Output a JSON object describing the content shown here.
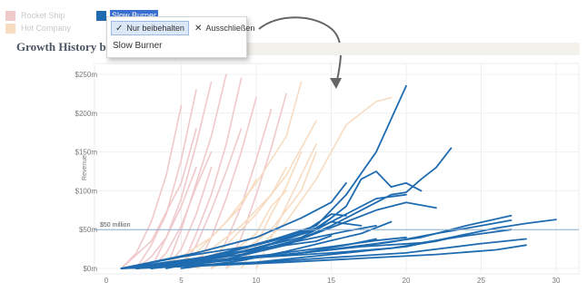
{
  "legend": {
    "items": [
      {
        "label": "Rocket Ship",
        "color": "#f0c9cb"
      },
      {
        "label": "Hot Company",
        "color": "#f7dcc2"
      },
      {
        "label": "Slow Burner",
        "color": "#1f6bb0",
        "selected": true
      }
    ]
  },
  "tooltip": {
    "keep_label": "Nur beibehalten",
    "exclude_label": "Ausschließen",
    "item_label": "Slow Burner"
  },
  "chart_title": "Growth History by Co",
  "chart_data": {
    "type": "line",
    "xlabel": "",
    "ylabel": "Revenue",
    "xlim": [
      0,
      31
    ],
    "ylim": [
      -5,
      260
    ],
    "x_ticks": [
      0,
      5,
      10,
      15,
      20,
      25,
      30
    ],
    "y_ticks": [
      {
        "value": 0,
        "label": "$0m"
      },
      {
        "value": 50,
        "label": "$50m"
      },
      {
        "value": 100,
        "label": "$100m"
      },
      {
        "value": 150,
        "label": "$150m"
      },
      {
        "value": 200,
        "label": "$200m"
      },
      {
        "value": 250,
        "label": "$250m"
      }
    ],
    "reference_line": {
      "value": 50,
      "label": "$50 million"
    },
    "series": [
      {
        "group": "Rocket Ship",
        "color": "#f0c9cb",
        "points": [
          [
            1,
            0
          ],
          [
            2,
            20
          ],
          [
            3,
            60
          ],
          [
            4,
            120
          ],
          [
            5,
            210
          ]
        ]
      },
      {
        "group": "Rocket Ship",
        "color": "#f0c9cb",
        "points": [
          [
            2,
            0
          ],
          [
            3,
            30
          ],
          [
            4,
            70
          ],
          [
            5,
            140
          ],
          [
            6,
            230
          ]
        ]
      },
      {
        "group": "Rocket Ship",
        "color": "#f0c9cb",
        "points": [
          [
            3,
            0
          ],
          [
            4,
            40
          ],
          [
            5,
            90
          ],
          [
            6,
            160
          ],
          [
            7,
            240
          ]
        ]
      },
      {
        "group": "Rocket Ship",
        "color": "#f0c9cb",
        "points": [
          [
            4,
            0
          ],
          [
            5,
            50
          ],
          [
            6,
            110
          ],
          [
            7,
            170
          ],
          [
            8,
            250
          ]
        ]
      },
      {
        "group": "Rocket Ship",
        "color": "#f0c9cb",
        "points": [
          [
            5,
            0
          ],
          [
            6,
            45
          ],
          [
            7,
            95
          ],
          [
            8,
            160
          ],
          [
            9,
            245
          ]
        ]
      },
      {
        "group": "Rocket Ship",
        "color": "#f0c9cb",
        "points": [
          [
            2,
            0
          ],
          [
            3,
            15
          ],
          [
            4,
            40
          ],
          [
            5,
            80
          ],
          [
            6,
            130
          ]
        ]
      },
      {
        "group": "Rocket Ship",
        "color": "#f0c9cb",
        "points": [
          [
            6,
            0
          ],
          [
            7,
            40
          ],
          [
            8,
            90
          ],
          [
            9,
            150
          ],
          [
            10,
            220
          ]
        ]
      },
      {
        "group": "Rocket Ship",
        "color": "#f0c9cb",
        "points": [
          [
            1,
            0
          ],
          [
            3,
            35
          ],
          [
            5,
            110
          ],
          [
            6,
            180
          ]
        ]
      },
      {
        "group": "Rocket Ship",
        "color": "#f0c9cb",
        "points": [
          [
            7,
            0
          ],
          [
            8,
            35
          ],
          [
            9,
            80
          ],
          [
            10,
            140
          ],
          [
            11,
            205
          ]
        ]
      },
      {
        "group": "Rocket Ship",
        "color": "#f0c9cb",
        "points": [
          [
            3,
            0
          ],
          [
            4,
            20
          ],
          [
            5,
            55
          ],
          [
            6,
            105
          ],
          [
            7,
            150
          ]
        ]
      },
      {
        "group": "Rocket Ship",
        "color": "#f0c9cb",
        "points": [
          [
            8,
            0
          ],
          [
            9,
            40
          ],
          [
            10,
            95
          ],
          [
            11,
            155
          ],
          [
            12,
            225
          ]
        ]
      },
      {
        "group": "Rocket Ship",
        "color": "#f0c9cb",
        "points": [
          [
            4,
            0
          ],
          [
            5,
            25
          ],
          [
            6,
            70
          ],
          [
            7,
            130
          ]
        ]
      },
      {
        "group": "Rocket Ship",
        "color": "#f0c9cb",
        "points": [
          [
            5,
            0
          ],
          [
            6,
            30
          ],
          [
            7,
            75
          ],
          [
            8,
            125
          ],
          [
            9,
            180
          ]
        ]
      },
      {
        "group": "Hot Company",
        "color": "#f7dcc2",
        "points": [
          [
            4,
            0
          ],
          [
            6,
            20
          ],
          [
            8,
            60
          ],
          [
            10,
            110
          ],
          [
            12,
            170
          ],
          [
            13,
            240
          ]
        ]
      },
      {
        "group": "Hot Company",
        "color": "#f7dcc2",
        "points": [
          [
            5,
            0
          ],
          [
            7,
            25
          ],
          [
            9,
            55
          ],
          [
            11,
            95
          ],
          [
            12,
            130
          ]
        ]
      },
      {
        "group": "Hot Company",
        "color": "#f7dcc2",
        "points": [
          [
            6,
            0
          ],
          [
            8,
            30
          ],
          [
            10,
            70
          ],
          [
            12,
            120
          ],
          [
            14,
            190
          ]
        ]
      },
      {
        "group": "Hot Company",
        "color": "#f7dcc2",
        "points": [
          [
            7,
            0
          ],
          [
            9,
            20
          ],
          [
            11,
            50
          ],
          [
            13,
            100
          ],
          [
            14,
            150
          ]
        ]
      },
      {
        "group": "Hot Company",
        "color": "#f7dcc2",
        "points": [
          [
            8,
            0
          ],
          [
            10,
            25
          ],
          [
            12,
            60
          ],
          [
            14,
            115
          ],
          [
            16,
            185
          ],
          [
            18,
            215
          ],
          [
            19,
            220
          ]
        ]
      },
      {
        "group": "Hot Company",
        "color": "#f7dcc2",
        "points": [
          [
            3,
            0
          ],
          [
            5,
            15
          ],
          [
            7,
            40
          ],
          [
            9,
            80
          ],
          [
            10,
            115
          ]
        ]
      },
      {
        "group": "Hot Company",
        "color": "#f7dcc2",
        "points": [
          [
            9,
            0
          ],
          [
            10,
            30
          ],
          [
            11,
            70
          ],
          [
            12,
            105
          ],
          [
            13,
            150
          ]
        ]
      },
      {
        "group": "Hot Company",
        "color": "#f7dcc2",
        "points": [
          [
            6,
            0
          ],
          [
            8,
            15
          ],
          [
            10,
            45
          ],
          [
            11,
            80
          ],
          [
            12,
            100
          ]
        ]
      },
      {
        "group": "Hot Company",
        "color": "#f7dcc2",
        "points": [
          [
            10,
            0
          ],
          [
            11,
            40
          ],
          [
            12,
            80
          ],
          [
            13,
            120
          ],
          [
            14,
            160
          ]
        ]
      },
      {
        "group": "Slow Burner",
        "color": "#1f6bb0",
        "points": [
          [
            1,
            0
          ],
          [
            5,
            15
          ],
          [
            10,
            30
          ],
          [
            14,
            55
          ],
          [
            16,
            95
          ],
          [
            18,
            150
          ],
          [
            20,
            235
          ]
        ]
      },
      {
        "group": "Slow Burner",
        "color": "#1f6bb0",
        "points": [
          [
            2,
            0
          ],
          [
            6,
            10
          ],
          [
            10,
            25
          ],
          [
            14,
            50
          ],
          [
            16,
            80
          ],
          [
            17,
            115
          ],
          [
            18,
            125
          ],
          [
            19,
            105
          ],
          [
            20,
            110
          ],
          [
            21,
            100
          ]
        ]
      },
      {
        "group": "Slow Burner",
        "color": "#1f6bb0",
        "points": [
          [
            3,
            0
          ],
          [
            8,
            12
          ],
          [
            12,
            30
          ],
          [
            15,
            55
          ],
          [
            17,
            75
          ],
          [
            19,
            95
          ],
          [
            20,
            98
          ],
          [
            21,
            115
          ],
          [
            22,
            130
          ],
          [
            23,
            155
          ]
        ]
      },
      {
        "group": "Slow Burner",
        "color": "#1f6bb0",
        "points": [
          [
            1,
            0
          ],
          [
            6,
            20
          ],
          [
            10,
            40
          ],
          [
            13,
            65
          ],
          [
            15,
            85
          ],
          [
            16,
            110
          ]
        ]
      },
      {
        "group": "Slow Burner",
        "color": "#1f6bb0",
        "points": [
          [
            2,
            0
          ],
          [
            7,
            15
          ],
          [
            11,
            35
          ],
          [
            14,
            50
          ],
          [
            16,
            70
          ],
          [
            18,
            90
          ],
          [
            20,
            95
          ]
        ]
      },
      {
        "group": "Slow Burner",
        "color": "#1f6bb0",
        "points": [
          [
            3,
            0
          ],
          [
            9,
            18
          ],
          [
            13,
            38
          ],
          [
            16,
            60
          ],
          [
            18,
            75
          ],
          [
            20,
            85
          ],
          [
            22,
            78
          ]
        ]
      },
      {
        "group": "Slow Burner",
        "color": "#1f6bb0",
        "points": [
          [
            1,
            0
          ],
          [
            5,
            10
          ],
          [
            9,
            22
          ],
          [
            13,
            40
          ],
          [
            15,
            60
          ],
          [
            17,
            55
          ]
        ]
      },
      {
        "group": "Slow Burner",
        "color": "#1f6bb0",
        "points": [
          [
            2,
            0
          ],
          [
            8,
            10
          ],
          [
            14,
            22
          ],
          [
            18,
            32
          ],
          [
            21,
            40
          ],
          [
            24,
            55
          ],
          [
            27,
            68
          ]
        ]
      },
      {
        "group": "Slow Burner",
        "color": "#1f6bb0",
        "points": [
          [
            1,
            0
          ],
          [
            10,
            8
          ],
          [
            16,
            20
          ],
          [
            20,
            28
          ],
          [
            23,
            40
          ],
          [
            26,
            52
          ],
          [
            28,
            58
          ],
          [
            30,
            63
          ]
        ]
      },
      {
        "group": "Slow Burner",
        "color": "#1f6bb0",
        "points": [
          [
            3,
            0
          ],
          [
            9,
            12
          ],
          [
            15,
            24
          ],
          [
            19,
            34
          ],
          [
            22,
            45
          ],
          [
            25,
            55
          ],
          [
            27,
            62
          ]
        ]
      },
      {
        "group": "Slow Burner",
        "color": "#1f6bb0",
        "points": [
          [
            2,
            0
          ],
          [
            6,
            8
          ],
          [
            12,
            18
          ],
          [
            17,
            28
          ],
          [
            21,
            33
          ],
          [
            24,
            42
          ],
          [
            27,
            50
          ]
        ]
      },
      {
        "group": "Slow Burner",
        "color": "#1f6bb0",
        "points": [
          [
            1,
            0
          ],
          [
            7,
            14
          ],
          [
            11,
            28
          ],
          [
            14,
            40
          ],
          [
            16,
            48
          ],
          [
            18,
            55
          ]
        ]
      },
      {
        "group": "Slow Burner",
        "color": "#1f6bb0",
        "points": [
          [
            4,
            0
          ],
          [
            8,
            16
          ],
          [
            11,
            32
          ],
          [
            13,
            45
          ],
          [
            15,
            70
          ],
          [
            16,
            68
          ]
        ]
      },
      {
        "group": "Slow Burner",
        "color": "#1f6bb0",
        "points": [
          [
            1,
            0
          ],
          [
            4,
            8
          ],
          [
            8,
            18
          ],
          [
            12,
            30
          ],
          [
            14,
            35
          ],
          [
            15,
            42
          ]
        ]
      },
      {
        "group": "Slow Burner",
        "color": "#1f6bb0",
        "points": [
          [
            2,
            0
          ],
          [
            9,
            6
          ],
          [
            15,
            14
          ],
          [
            20,
            20
          ],
          [
            25,
            32
          ],
          [
            28,
            38
          ]
        ]
      },
      {
        "group": "Slow Burner",
        "color": "#1f6bb0",
        "points": [
          [
            3,
            0
          ],
          [
            6,
            12
          ],
          [
            9,
            26
          ],
          [
            12,
            42
          ],
          [
            14,
            52
          ],
          [
            15,
            65
          ]
        ]
      },
      {
        "group": "Slow Burner",
        "color": "#1f6bb0",
        "points": [
          [
            1,
            0
          ],
          [
            5,
            6
          ],
          [
            10,
            14
          ],
          [
            15,
            20
          ],
          [
            19,
            26
          ],
          [
            22,
            35
          ],
          [
            24,
            44
          ]
        ]
      },
      {
        "group": "Slow Burner",
        "color": "#1f6bb0",
        "points": [
          [
            5,
            0
          ],
          [
            9,
            10
          ],
          [
            12,
            22
          ],
          [
            15,
            36
          ],
          [
            17,
            45
          ],
          [
            19,
            60
          ]
        ]
      },
      {
        "group": "Slow Burner",
        "color": "#1f6bb0",
        "points": [
          [
            1,
            0
          ],
          [
            3,
            4
          ],
          [
            7,
            10
          ],
          [
            11,
            18
          ],
          [
            15,
            28
          ],
          [
            18,
            36
          ],
          [
            20,
            40
          ]
        ]
      },
      {
        "group": "Slow Burner",
        "color": "#1f6bb0",
        "points": [
          [
            2,
            0
          ],
          [
            5,
            5
          ],
          [
            9,
            12
          ],
          [
            13,
            20
          ],
          [
            16,
            30
          ],
          [
            18,
            38
          ]
        ]
      },
      {
        "group": "Slow Burner",
        "color": "#1f6bb0",
        "points": [
          [
            1,
            0
          ],
          [
            6,
            3
          ],
          [
            12,
            8
          ],
          [
            18,
            14
          ],
          [
            22,
            18
          ],
          [
            26,
            24
          ],
          [
            28,
            30
          ]
        ]
      }
    ]
  }
}
